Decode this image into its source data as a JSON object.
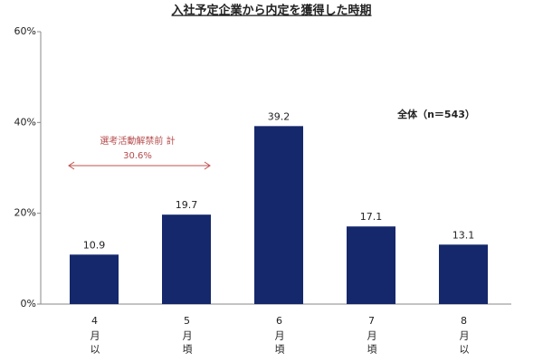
{
  "chart_data": {
    "type": "bar",
    "title": "入社予定企業から内定を獲得した時期",
    "categories": [
      "4月以",
      "5月頃",
      "6月頃",
      "7月頃",
      "8月以"
    ],
    "values": [
      10.9,
      19.7,
      39.2,
      17.1,
      13.1
    ],
    "color": "#15286b",
    "ylim": [
      0,
      60
    ],
    "yticks": [
      {
        "value": 0,
        "label": "0%"
      },
      {
        "value": 20,
        "label": "20%"
      },
      {
        "value": 40,
        "label": "40%"
      },
      {
        "value": 60,
        "label": "60%"
      }
    ],
    "grid": false,
    "annotations": [
      "選考活動解禁前 計",
      "30.6%"
    ],
    "note": "全体（n＝543）"
  }
}
